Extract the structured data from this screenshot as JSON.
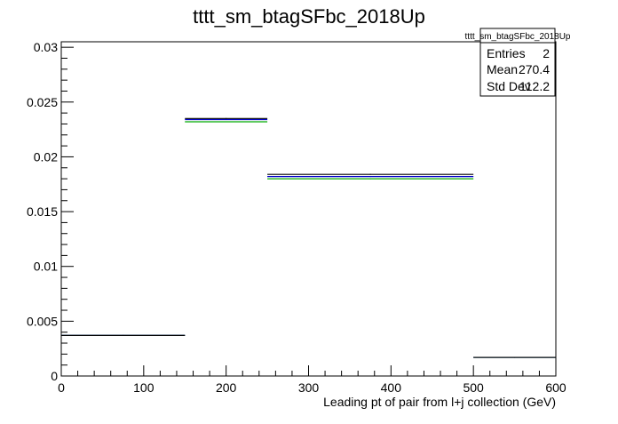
{
  "chart_data": {
    "type": "step",
    "title": "tttt_sm_btagSFbc_2018Up",
    "xlabel": "Leading pt of pair from l+j collection (GeV)",
    "ylabel": "",
    "xlim": [
      0,
      600
    ],
    "ylim": [
      0,
      0.0305
    ],
    "x_ticks": [
      0,
      100,
      200,
      300,
      400,
      500,
      600
    ],
    "x_tick_labels": [
      "0",
      "100",
      "200",
      "300",
      "400",
      "500",
      "600"
    ],
    "y_ticks": [
      0,
      0.005,
      0.01,
      0.015,
      0.02,
      0.025,
      0.03
    ],
    "y_tick_labels": [
      "0",
      "0.005",
      "0.01",
      "0.015",
      "0.02",
      "0.025",
      "0.03"
    ],
    "grid": false,
    "bin_edges": [
      0,
      150,
      250,
      500,
      600
    ],
    "series": [
      {
        "color": "#000000",
        "values": [
          0.0037,
          0.0235,
          0.0184,
          0.0017
        ]
      },
      {
        "color": "#0000cc",
        "values": [
          0.0037,
          0.0234,
          0.0182,
          0.0017
        ]
      },
      {
        "color": "#00aa00",
        "values": [
          0.0037,
          0.0232,
          0.018,
          0.0017
        ]
      }
    ],
    "stats_box": {
      "title": "tttt_sm_btagSFbc_2018Up",
      "position": "top-right",
      "rows": [
        {
          "label": "Entries",
          "value": "2"
        },
        {
          "label": "Mean",
          "value": "270.4"
        },
        {
          "label": "Std Dev",
          "value": "112.2"
        }
      ]
    }
  }
}
